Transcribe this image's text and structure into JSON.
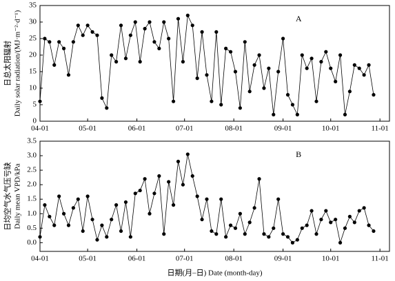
{
  "chart_data": [
    {
      "type": "line",
      "panel_label": "A",
      "ylabel_cn": "日总太阳辐射",
      "ylabel": "Daily solar radiation/(MJ·m⁻²·d⁻¹)",
      "x": [
        "04-01",
        "04-04",
        "04-07",
        "04-10",
        "04-13",
        "04-16",
        "04-19",
        "04-22",
        "04-25",
        "04-28",
        "05-01",
        "05-04",
        "05-07",
        "05-10",
        "05-13",
        "05-16",
        "05-19",
        "05-22",
        "05-25",
        "05-28",
        "05-31",
        "06-03",
        "06-06",
        "06-09",
        "06-12",
        "06-15",
        "06-18",
        "06-21",
        "06-24",
        "06-27",
        "06-30",
        "07-03",
        "07-06",
        "07-09",
        "07-12",
        "07-15",
        "07-18",
        "07-21",
        "07-24",
        "07-27",
        "07-30",
        "08-02",
        "08-05",
        "08-08",
        "08-11",
        "08-14",
        "08-17",
        "08-20",
        "08-23",
        "08-26",
        "08-29",
        "09-01",
        "09-04",
        "09-07",
        "09-10",
        "09-13",
        "09-16",
        "09-19",
        "09-22",
        "09-25",
        "09-28",
        "10-01",
        "10-04",
        "10-07",
        "10-10",
        "10-13",
        "10-16",
        "10-19",
        "10-22",
        "10-25",
        "10-28"
      ],
      "series": [
        {
          "name": "Daily solar radiation",
          "color": "#000000",
          "values": [
            6,
            25,
            24,
            17,
            24,
            22,
            14,
            24,
            29,
            26,
            29,
            27,
            26,
            7,
            4,
            20,
            18,
            29,
            19,
            26,
            30,
            18,
            28,
            30,
            24,
            22,
            30,
            25,
            6,
            31,
            18,
            32,
            29,
            13,
            27,
            14,
            6,
            27,
            5,
            22,
            21,
            15,
            4,
            24,
            9,
            17,
            20,
            10,
            16,
            2,
            15,
            25,
            8,
            5,
            2,
            20,
            16,
            19,
            6,
            18,
            21,
            16,
            12,
            20,
            2,
            9,
            17,
            16,
            14,
            17,
            8
          ]
        }
      ],
      "xlim": [
        "04-01",
        "11-07"
      ],
      "xticks": [
        "04-01",
        "05-01",
        "06-01",
        "07-01",
        "08-01",
        "09-01",
        "10-01",
        "11-01"
      ],
      "ylim": [
        0,
        35
      ],
      "yticks": [
        0,
        5,
        10,
        15,
        20,
        25,
        30,
        35
      ]
    },
    {
      "type": "line",
      "panel_label": "B",
      "ylabel_cn": "日均空气水气压亏缺",
      "ylabel": "Daily mean VPD/kPa",
      "xlabel": "日期(月–日)  Date (month-day)",
      "x": [
        "04-01",
        "04-04",
        "04-07",
        "04-10",
        "04-13",
        "04-16",
        "04-19",
        "04-22",
        "04-25",
        "04-28",
        "05-01",
        "05-04",
        "05-07",
        "05-10",
        "05-13",
        "05-16",
        "05-19",
        "05-22",
        "05-25",
        "05-28",
        "05-31",
        "06-03",
        "06-06",
        "06-09",
        "06-12",
        "06-15",
        "06-18",
        "06-21",
        "06-24",
        "06-27",
        "06-30",
        "07-03",
        "07-06",
        "07-09",
        "07-12",
        "07-15",
        "07-18",
        "07-21",
        "07-24",
        "07-27",
        "07-30",
        "08-02",
        "08-05",
        "08-08",
        "08-11",
        "08-14",
        "08-17",
        "08-20",
        "08-23",
        "08-26",
        "08-29",
        "09-01",
        "09-04",
        "09-07",
        "09-10",
        "09-13",
        "09-16",
        "09-19",
        "09-22",
        "09-25",
        "09-28",
        "10-01",
        "10-04",
        "10-07",
        "10-10",
        "10-13",
        "10-16",
        "10-19",
        "10-22",
        "10-25",
        "10-28"
      ],
      "series": [
        {
          "name": "Daily mean VPD",
          "color": "#000000",
          "values": [
            0.2,
            1.3,
            0.9,
            0.6,
            1.6,
            1.0,
            0.6,
            1.2,
            1.5,
            0.4,
            1.6,
            0.8,
            0.1,
            0.6,
            0.2,
            0.8,
            1.3,
            0.4,
            1.4,
            0.2,
            1.7,
            1.8,
            2.2,
            1.0,
            1.7,
            2.3,
            0.3,
            2.1,
            1.3,
            2.8,
            2.0,
            3.05,
            2.3,
            1.6,
            0.8,
            1.5,
            0.4,
            0.3,
            1.5,
            0.2,
            0.6,
            0.5,
            1.0,
            0.3,
            0.7,
            1.2,
            2.2,
            0.3,
            0.2,
            0.5,
            1.5,
            0.3,
            0.2,
            0.0,
            0.1,
            0.5,
            0.6,
            1.1,
            0.3,
            0.8,
            1.1,
            0.7,
            0.8,
            0.0,
            0.5,
            0.9,
            0.7,
            1.1,
            1.2,
            0.6,
            0.4
          ]
        }
      ],
      "xlim": [
        "04-01",
        "11-07"
      ],
      "xticks": [
        "04-01",
        "05-01",
        "06-01",
        "07-01",
        "08-01",
        "09-01",
        "10-01",
        "11-01"
      ],
      "ylim": [
        -0.3,
        3.5
      ],
      "yticks": [
        {
          "value": 0,
          "label": "0.0"
        },
        {
          "value": 0.5,
          "label": "0.5"
        },
        {
          "value": 1,
          "label": "1.0"
        },
        {
          "value": 1.5,
          "label": "1.5"
        },
        {
          "value": 2,
          "label": "2.0"
        },
        {
          "value": 2.5,
          "label": "2.5"
        },
        {
          "value": 3,
          "label": "3.0"
        },
        {
          "value": 3.5,
          "label": "3.5"
        }
      ]
    }
  ]
}
